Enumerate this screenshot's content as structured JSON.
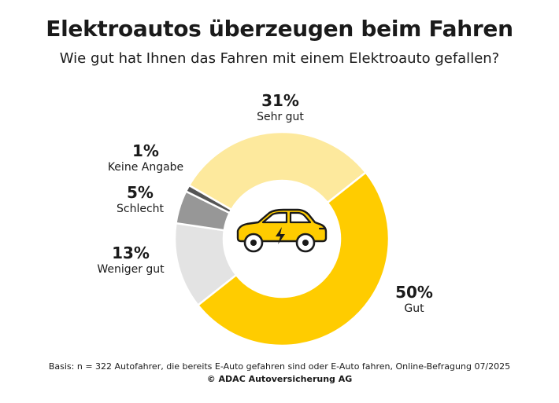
{
  "title": "Elektroautos überzeugen beim Fahren",
  "subtitle": "Wie gut hat Ihnen das Fahren mit einem Elektroauto gefallen?",
  "chart_data": {
    "type": "pie",
    "donut": true,
    "center_icon": "electric-car-icon",
    "slices": [
      {
        "label": "Sehr gut",
        "value": 31,
        "display": "31%",
        "color": "#fde99d"
      },
      {
        "label": "Gut",
        "value": 50,
        "display": "50%",
        "color": "#ffcc00"
      },
      {
        "label": "Weniger gut",
        "value": 13,
        "display": "13%",
        "color": "#e3e3e3"
      },
      {
        "label": "Schlecht",
        "value": 5,
        "display": "5%",
        "color": "#979797"
      },
      {
        "label": "Keine Angabe",
        "value": 1,
        "display": "1%",
        "color": "#555555"
      }
    ]
  },
  "footer": {
    "basis": "Basis: n = 322 Autofahrer, die bereits E-Auto gefahren sind oder E-Auto fahren, Online-Befragung 07/2025",
    "copyright": "© ADAC Autoversicherung AG"
  }
}
